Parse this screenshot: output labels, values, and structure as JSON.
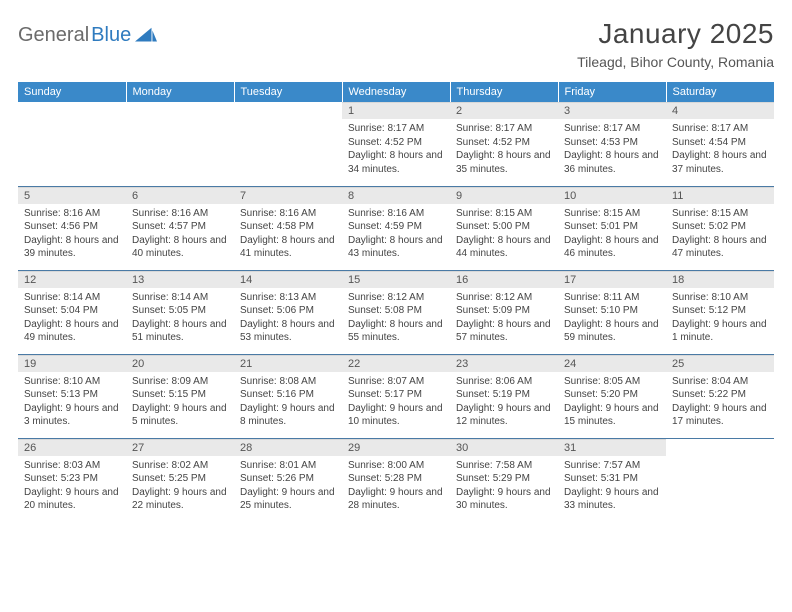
{
  "brand": {
    "part1": "General",
    "part2": "Blue"
  },
  "title": "January 2025",
  "location": "Tileagd, Bihor County, Romania",
  "header_bg": "#3a89c9",
  "daynum_bg": "#e9e9e9",
  "row_border": "#4a7aa5",
  "day_labels": [
    "Sunday",
    "Monday",
    "Tuesday",
    "Wednesday",
    "Thursday",
    "Friday",
    "Saturday"
  ],
  "weeks": [
    [
      null,
      null,
      null,
      {
        "n": "1",
        "sr": "8:17 AM",
        "ss": "4:52 PM",
        "dl": "8 hours and 34 minutes."
      },
      {
        "n": "2",
        "sr": "8:17 AM",
        "ss": "4:52 PM",
        "dl": "8 hours and 35 minutes."
      },
      {
        "n": "3",
        "sr": "8:17 AM",
        "ss": "4:53 PM",
        "dl": "8 hours and 36 minutes."
      },
      {
        "n": "4",
        "sr": "8:17 AM",
        "ss": "4:54 PM",
        "dl": "8 hours and 37 minutes."
      }
    ],
    [
      {
        "n": "5",
        "sr": "8:16 AM",
        "ss": "4:56 PM",
        "dl": "8 hours and 39 minutes."
      },
      {
        "n": "6",
        "sr": "8:16 AM",
        "ss": "4:57 PM",
        "dl": "8 hours and 40 minutes."
      },
      {
        "n": "7",
        "sr": "8:16 AM",
        "ss": "4:58 PM",
        "dl": "8 hours and 41 minutes."
      },
      {
        "n": "8",
        "sr": "8:16 AM",
        "ss": "4:59 PM",
        "dl": "8 hours and 43 minutes."
      },
      {
        "n": "9",
        "sr": "8:15 AM",
        "ss": "5:00 PM",
        "dl": "8 hours and 44 minutes."
      },
      {
        "n": "10",
        "sr": "8:15 AM",
        "ss": "5:01 PM",
        "dl": "8 hours and 46 minutes."
      },
      {
        "n": "11",
        "sr": "8:15 AM",
        "ss": "5:02 PM",
        "dl": "8 hours and 47 minutes."
      }
    ],
    [
      {
        "n": "12",
        "sr": "8:14 AM",
        "ss": "5:04 PM",
        "dl": "8 hours and 49 minutes."
      },
      {
        "n": "13",
        "sr": "8:14 AM",
        "ss": "5:05 PM",
        "dl": "8 hours and 51 minutes."
      },
      {
        "n": "14",
        "sr": "8:13 AM",
        "ss": "5:06 PM",
        "dl": "8 hours and 53 minutes."
      },
      {
        "n": "15",
        "sr": "8:12 AM",
        "ss": "5:08 PM",
        "dl": "8 hours and 55 minutes."
      },
      {
        "n": "16",
        "sr": "8:12 AM",
        "ss": "5:09 PM",
        "dl": "8 hours and 57 minutes."
      },
      {
        "n": "17",
        "sr": "8:11 AM",
        "ss": "5:10 PM",
        "dl": "8 hours and 59 minutes."
      },
      {
        "n": "18",
        "sr": "8:10 AM",
        "ss": "5:12 PM",
        "dl": "9 hours and 1 minute."
      }
    ],
    [
      {
        "n": "19",
        "sr": "8:10 AM",
        "ss": "5:13 PM",
        "dl": "9 hours and 3 minutes."
      },
      {
        "n": "20",
        "sr": "8:09 AM",
        "ss": "5:15 PM",
        "dl": "9 hours and 5 minutes."
      },
      {
        "n": "21",
        "sr": "8:08 AM",
        "ss": "5:16 PM",
        "dl": "9 hours and 8 minutes."
      },
      {
        "n": "22",
        "sr": "8:07 AM",
        "ss": "5:17 PM",
        "dl": "9 hours and 10 minutes."
      },
      {
        "n": "23",
        "sr": "8:06 AM",
        "ss": "5:19 PM",
        "dl": "9 hours and 12 minutes."
      },
      {
        "n": "24",
        "sr": "8:05 AM",
        "ss": "5:20 PM",
        "dl": "9 hours and 15 minutes."
      },
      {
        "n": "25",
        "sr": "8:04 AM",
        "ss": "5:22 PM",
        "dl": "9 hours and 17 minutes."
      }
    ],
    [
      {
        "n": "26",
        "sr": "8:03 AM",
        "ss": "5:23 PM",
        "dl": "9 hours and 20 minutes."
      },
      {
        "n": "27",
        "sr": "8:02 AM",
        "ss": "5:25 PM",
        "dl": "9 hours and 22 minutes."
      },
      {
        "n": "28",
        "sr": "8:01 AM",
        "ss": "5:26 PM",
        "dl": "9 hours and 25 minutes."
      },
      {
        "n": "29",
        "sr": "8:00 AM",
        "ss": "5:28 PM",
        "dl": "9 hours and 28 minutes."
      },
      {
        "n": "30",
        "sr": "7:58 AM",
        "ss": "5:29 PM",
        "dl": "9 hours and 30 minutes."
      },
      {
        "n": "31",
        "sr": "7:57 AM",
        "ss": "5:31 PM",
        "dl": "9 hours and 33 minutes."
      },
      null
    ]
  ],
  "labels": {
    "sunrise": "Sunrise: ",
    "sunset": "Sunset: ",
    "daylight": "Daylight: "
  }
}
